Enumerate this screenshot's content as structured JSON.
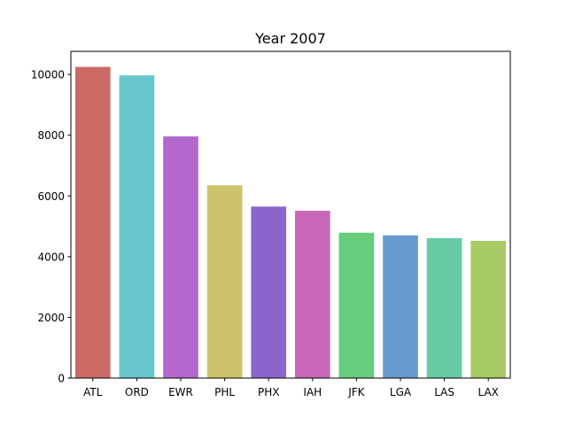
{
  "chart_data": {
    "type": "bar",
    "title": "Year 2007",
    "xlabel": "",
    "ylabel": "",
    "categories": [
      "ATL",
      "ORD",
      "EWR",
      "PHL",
      "PHX",
      "IAH",
      "JFK",
      "LGA",
      "LAS",
      "LAX"
    ],
    "values": [
      10250,
      9970,
      7960,
      6350,
      5650,
      5510,
      4790,
      4700,
      4610,
      4520
    ],
    "colors": [
      "#cc6b65",
      "#67c7cd",
      "#b268cc",
      "#ccc36a",
      "#8a66cb",
      "#c967b8",
      "#67cc7b",
      "#6799cc",
      "#67cca4",
      "#a8cb66"
    ],
    "ylim": [
      0,
      10762.5
    ],
    "yticks": [
      0,
      2000,
      4000,
      6000,
      8000,
      10000
    ],
    "ytick_labels": [
      "0",
      "2000",
      "4000",
      "6000",
      "8000",
      "10000"
    ],
    "grid": false,
    "legend": false
  }
}
